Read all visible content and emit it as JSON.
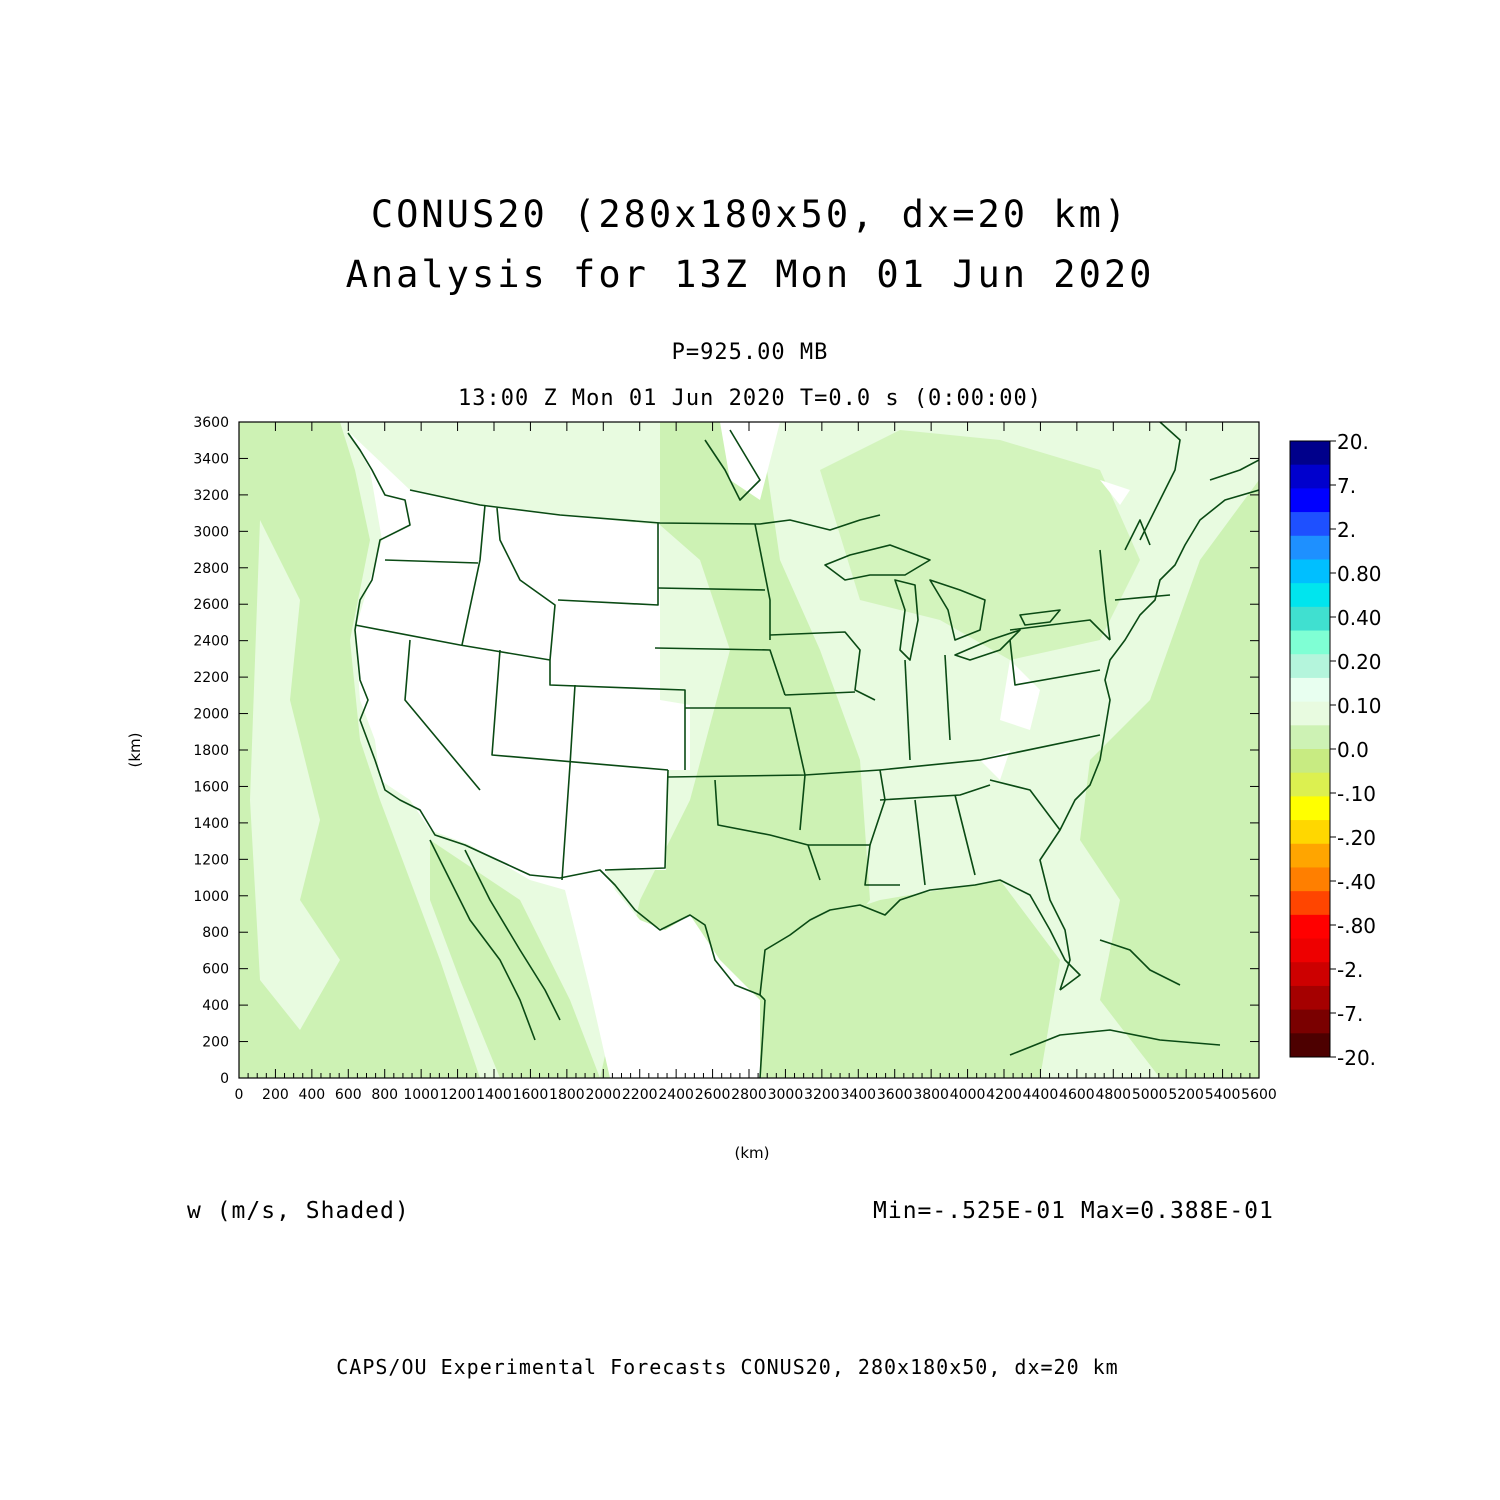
{
  "titles": {
    "line1": "CONUS20 (280x180x50, dx=20 km)",
    "line2": "Analysis for 13Z Mon 01 Jun 2020",
    "level": "P=925.00 MB",
    "time": "13:00 Z Mon 01 Jun 2020   T=0.0 s (0:00:00)"
  },
  "axes": {
    "x_unit": "(km)",
    "y_unit": "(km)",
    "x_ticks": [
      "0",
      "200",
      "400",
      "600",
      "800",
      "1000",
      "1200",
      "1400",
      "1600",
      "1800",
      "2000",
      "2200",
      "2400",
      "2600",
      "2800",
      "3000",
      "3200",
      "3400",
      "3600",
      "3800",
      "4000",
      "4200",
      "4400",
      "4600",
      "4800",
      "5000",
      "5200",
      "5400",
      "5600"
    ],
    "y_ticks": [
      "0",
      "200",
      "400",
      "600",
      "800",
      "1000",
      "1200",
      "1400",
      "1600",
      "1800",
      "2000",
      "2200",
      "2400",
      "2600",
      "2800",
      "3000",
      "3200",
      "3400",
      "3600"
    ],
    "xlim": [
      0,
      5600
    ],
    "ylim": [
      0,
      3600
    ]
  },
  "field": {
    "name": "w (m/s, Shaded)",
    "stats": "Min=-.525E-01 Max=0.388E-01"
  },
  "colorbar": {
    "labels": [
      "20.",
      "7.",
      "2.",
      "0.80",
      "0.40",
      "0.20",
      "0.10",
      "0.0",
      "-.10",
      "-.20",
      "-.40",
      "-.80",
      "-2.",
      "-7.",
      "-20."
    ],
    "colors": [
      "#00008b",
      "#0000cd",
      "#0000ff",
      "#1e50ff",
      "#1e90ff",
      "#00bfff",
      "#00e5ee",
      "#40e0d0",
      "#7fffd4",
      "#b4f5dc",
      "#e8fff0",
      "#e8fbe0",
      "#cdf2b4",
      "#c8eb82",
      "#dcf050",
      "#ffff00",
      "#ffd700",
      "#ffa500",
      "#ff7f00",
      "#ff4500",
      "#ff0000",
      "#ee0000",
      "#cd0000",
      "#a50000",
      "#7a0000",
      "#4d0000"
    ]
  },
  "colors": {
    "map_line": "#0a4a14",
    "land_base": "#ffffff",
    "shade_light": "#e8fbe0",
    "shade_mid": "#cdf2b4"
  },
  "footer": "CAPS/OU Experimental Forecasts  CONUS20, 280x180x50, dx=20 km"
}
